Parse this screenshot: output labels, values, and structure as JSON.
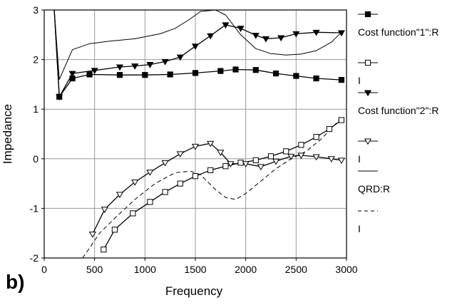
{
  "figure": {
    "panel_label": "b)"
  },
  "chart_data": {
    "type": "line",
    "title": "",
    "xlabel": "Frequency",
    "ylabel": "Impedance",
    "xlim": [
      0,
      3000
    ],
    "ylim": [
      -2,
      3
    ],
    "xticks": [
      0,
      500,
      1000,
      1500,
      2000,
      2500,
      3000
    ],
    "yticks": [
      -2,
      -1,
      0,
      1,
      2,
      3
    ],
    "grid": true,
    "legend_position": "right",
    "series": [
      {
        "name": "Cost function\"1\":R",
        "style": "solid",
        "marker": "square-filled",
        "color": "#000000",
        "x": [
          100,
          150,
          280,
          450,
          750,
          1000,
          1250,
          1500,
          1750,
          1900,
          2100,
          2300,
          2500,
          2700,
          2950
        ],
        "y": [
          3.0,
          1.25,
          1.62,
          1.7,
          1.69,
          1.69,
          1.7,
          1.73,
          1.77,
          1.8,
          1.79,
          1.72,
          1.67,
          1.62,
          1.59
        ]
      },
      {
        "name": "I",
        "style": "solid",
        "marker": "square-open",
        "color": "#000000",
        "x": [
          590,
          700,
          880,
          1050,
          1200,
          1350,
          1500,
          1650,
          1800,
          1950,
          2100,
          2250,
          2400,
          2550,
          2700,
          2830,
          2950
        ],
        "y": [
          -1.83,
          -1.43,
          -1.1,
          -0.87,
          -0.67,
          -0.5,
          -0.35,
          -0.23,
          -0.15,
          -0.08,
          -0.03,
          0.05,
          0.15,
          0.28,
          0.44,
          0.6,
          0.78
        ]
      },
      {
        "name": "Cost function\"2\":R",
        "style": "solid",
        "marker": "triangle-down-filled",
        "color": "#000000",
        "x": [
          100,
          150,
          280,
          500,
          750,
          900,
          1050,
          1200,
          1350,
          1500,
          1650,
          1800,
          1950,
          2100,
          2200,
          2350,
          2500,
          2700,
          2950
        ],
        "y": [
          3.0,
          1.25,
          1.72,
          1.78,
          1.85,
          1.87,
          1.9,
          1.96,
          2.05,
          2.27,
          2.48,
          2.7,
          2.63,
          2.49,
          2.42,
          2.44,
          2.52,
          2.55,
          2.54
        ]
      },
      {
        "name": "I",
        "style": "solid",
        "marker": "triangle-down-open",
        "color": "#000000",
        "x": [
          480,
          600,
          750,
          900,
          1050,
          1200,
          1350,
          1500,
          1650,
          1750,
          1850,
          2000,
          2150,
          2300,
          2450,
          2550,
          2700,
          2850,
          2950
        ],
        "y": [
          -1.52,
          -1.02,
          -0.72,
          -0.47,
          -0.27,
          -0.08,
          0.1,
          0.25,
          0.31,
          0.13,
          -0.1,
          -0.1,
          -0.16,
          -0.05,
          0.05,
          0.07,
          0.04,
          0.0,
          -0.03
        ]
      },
      {
        "name": "QRD:R",
        "style": "solid",
        "marker": "none",
        "color": "#000000",
        "x": [
          100,
          150,
          280,
          450,
          650,
          900,
          1150,
          1300,
          1450,
          1550,
          1700,
          1800,
          1950,
          2100,
          2250,
          2400,
          2550,
          2700,
          2850,
          2950
        ],
        "y": [
          3.0,
          1.6,
          2.2,
          2.32,
          2.37,
          2.42,
          2.52,
          2.63,
          2.82,
          2.97,
          3.0,
          2.9,
          2.5,
          2.22,
          2.12,
          2.09,
          2.11,
          2.18,
          2.35,
          2.55
        ]
      },
      {
        "name": "I",
        "style": "dashed",
        "marker": "none",
        "color": "#000000",
        "x": [
          380,
          450,
          550,
          700,
          900,
          1100,
          1300,
          1450,
          1550,
          1700,
          1800,
          1900,
          2000,
          2150,
          2300,
          2450,
          2600,
          2750,
          2900,
          2950
        ],
        "y": [
          -2.0,
          -1.8,
          -1.5,
          -1.2,
          -0.82,
          -0.5,
          -0.28,
          -0.25,
          -0.32,
          -0.62,
          -0.78,
          -0.82,
          -0.7,
          -0.45,
          -0.2,
          0.0,
          0.15,
          0.4,
          0.72,
          0.85
        ]
      }
    ]
  }
}
